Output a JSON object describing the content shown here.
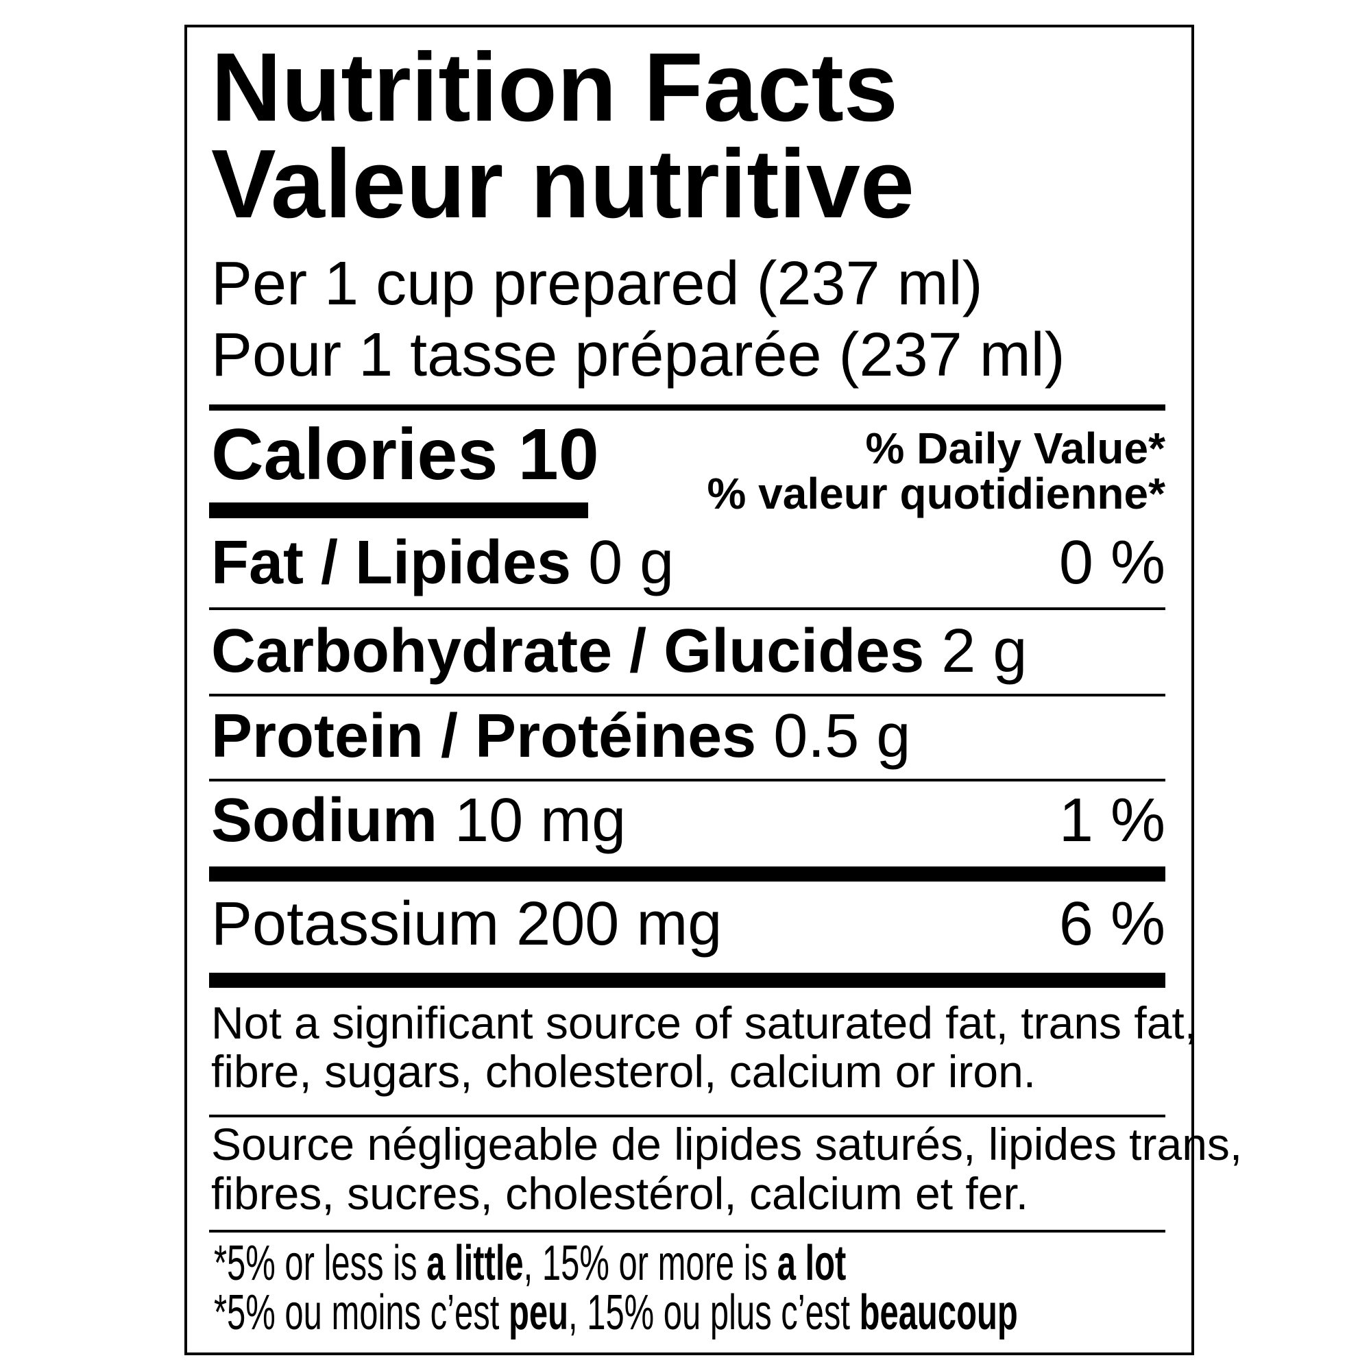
{
  "title": {
    "en": "Nutrition Facts",
    "fr": "Valeur nutritive"
  },
  "serving": {
    "en": "Per 1 cup prepared (237 ml)",
    "fr": "Pour 1 tasse préparée (237 ml)"
  },
  "calories": {
    "label": "Calories",
    "value": "10"
  },
  "daily_value_header": {
    "en": "% Daily Value*",
    "fr": "% valeur quotidienne*"
  },
  "nutrients": [
    {
      "label": "Fat / Lipides",
      "amount": "0 g",
      "dv": "0 %"
    },
    {
      "label": "Carbohydrate / Glucides",
      "amount": "2 g",
      "dv": ""
    },
    {
      "label": "Protein / Protéines",
      "amount": "0.5 g",
      "dv": ""
    },
    {
      "label": "Sodium",
      "amount": "10 mg",
      "dv": "1 %"
    },
    {
      "label": "Potassium 200 mg",
      "amount": "",
      "dv": "6 %"
    }
  ],
  "not_significant": {
    "en": [
      "Not a significant source of saturated fat, trans fat,",
      "fibre, sugars, cholesterol, calcium or iron."
    ],
    "fr": [
      "Source négligeable de lipides saturés, lipides trans,",
      "fibres, sucres, cholestérol, calcium et fer."
    ]
  },
  "footnote": {
    "en": {
      "p1": "*5% or less is ",
      "b1": "a little",
      "p2": ", 15% or more is ",
      "b2": "a lot"
    },
    "fr": {
      "p1": "*5% ou moins c’est ",
      "b1": "peu",
      "p2": ", 15% ou plus c’est ",
      "b2": "beaucoup"
    }
  }
}
